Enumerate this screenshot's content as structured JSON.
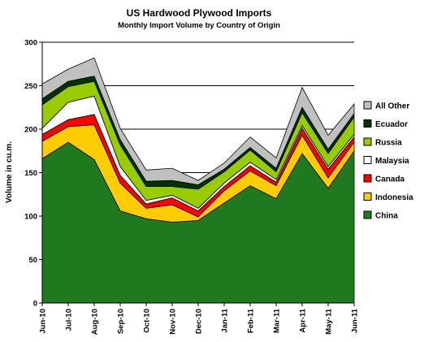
{
  "chart_data": {
    "type": "area",
    "title": "US Hardwood Plywood Imports",
    "subtitle": "Monthly Import Volume by Country of Origin",
    "ylabel": "Volume in cu.m.",
    "xlabel": "",
    "ylim": [
      0,
      300
    ],
    "yticks": [
      0,
      50,
      100,
      150,
      200,
      250,
      300
    ],
    "stacked": true,
    "grid": "horizontal gridlines at 150, 200, 250, 300",
    "legend_position": "right",
    "categories": [
      "Jun-10",
      "Jul-10",
      "Aug-10",
      "Sep-10",
      "Oct-10",
      "Nov-10",
      "Dec-10",
      "Jan-11",
      "Feb-11",
      "Mar-11",
      "Apr-11",
      "May-11",
      "Jun-11"
    ],
    "series": [
      {
        "name": "China",
        "color": "#1f7a1f",
        "values": [
          166,
          185,
          165,
          106,
          97,
          93,
          95,
          115,
          135,
          120,
          172,
          132,
          175
        ]
      },
      {
        "name": "Indonesia",
        "color": "#ffcc00",
        "values": [
          20,
          18,
          40,
          32,
          12,
          20,
          4,
          14,
          17,
          15,
          21,
          12,
          10
        ]
      },
      {
        "name": "Canada",
        "color": "#ff0000",
        "values": [
          8,
          8,
          12,
          9,
          5,
          8,
          7,
          5,
          6,
          4,
          8,
          10,
          6
        ]
      },
      {
        "name": "Malaysia",
        "color": "#ffffff",
        "values": [
          7,
          20,
          21,
          10,
          4,
          3,
          3,
          4,
          4,
          3,
          3,
          3,
          3
        ]
      },
      {
        "name": "Russia",
        "color": "#99cc00",
        "values": [
          27,
          18,
          17,
          25,
          16,
          10,
          22,
          13,
          14,
          9,
          15,
          15,
          20
        ]
      },
      {
        "name": "Ecuador",
        "color": "#003300",
        "values": [
          7,
          6,
          6,
          6,
          6,
          7,
          5,
          3,
          3,
          4,
          6,
          5,
          4
        ]
      },
      {
        "name": "All Other",
        "color": "#c0c0c0",
        "values": [
          17,
          14,
          21,
          13,
          13,
          14,
          5,
          7,
          12,
          12,
          23,
          16,
          11
        ]
      }
    ]
  }
}
